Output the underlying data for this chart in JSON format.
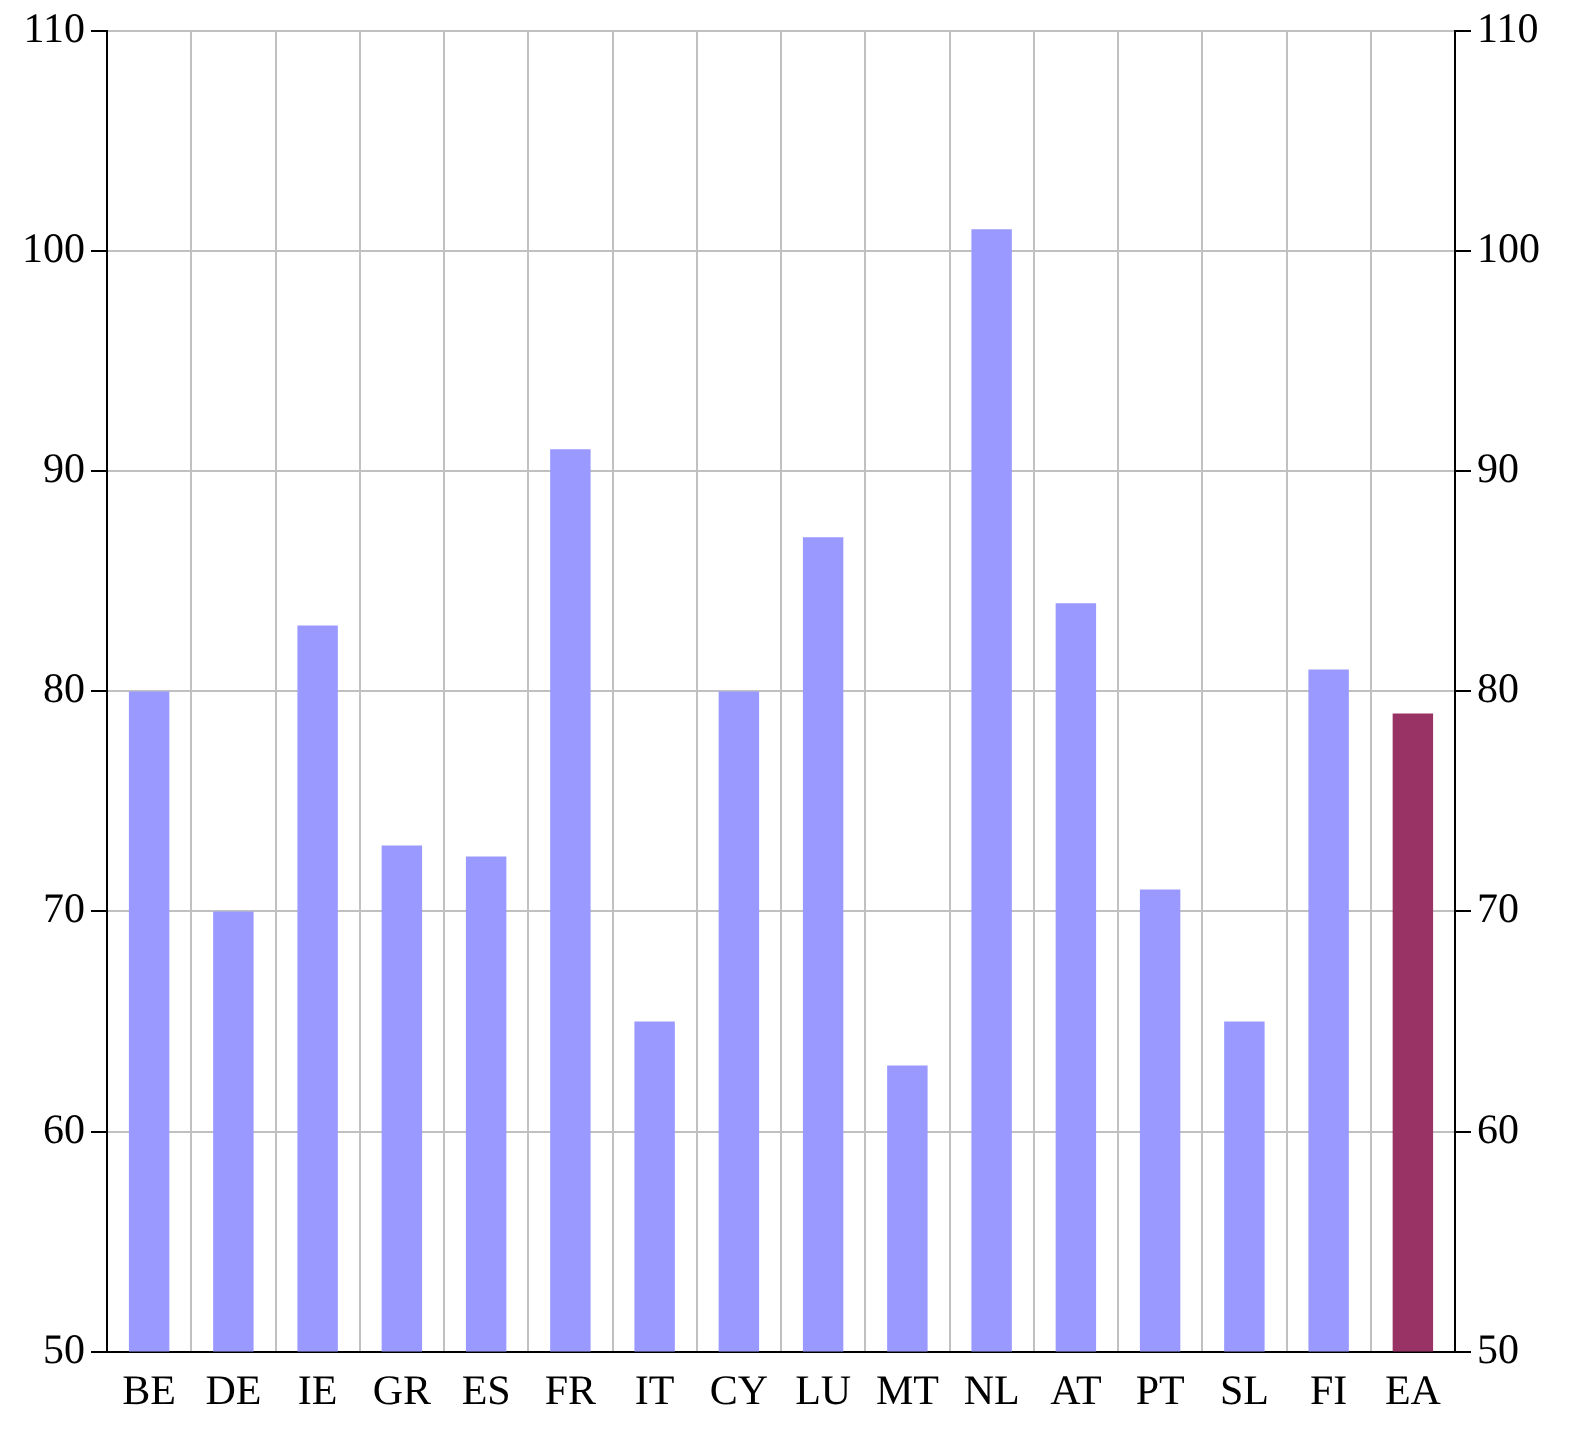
{
  "chart_data": {
    "type": "bar",
    "categories": [
      "BE",
      "DE",
      "IE",
      "GR",
      "ES",
      "FR",
      "IT",
      "CY",
      "LU",
      "MT",
      "NL",
      "AT",
      "PT",
      "SL",
      "FI",
      "EA"
    ],
    "values": [
      80,
      70,
      83,
      73,
      72.5,
      91,
      65,
      80,
      87,
      63,
      101,
      84,
      71,
      65,
      81,
      79
    ],
    "colors": [
      "#9999ff",
      "#9999ff",
      "#9999ff",
      "#9999ff",
      "#9999ff",
      "#9999ff",
      "#9999ff",
      "#9999ff",
      "#9999ff",
      "#9999ff",
      "#9999ff",
      "#9999ff",
      "#9999ff",
      "#9999ff",
      "#9999ff",
      "#993366"
    ],
    "ylim": [
      50,
      110
    ],
    "yticks": [
      50,
      60,
      70,
      80,
      90,
      100,
      110
    ],
    "y2lim": [
      50,
      110
    ],
    "y2ticks": [
      50,
      60,
      70,
      80,
      90,
      100,
      110
    ],
    "grid": true,
    "legend": false
  }
}
